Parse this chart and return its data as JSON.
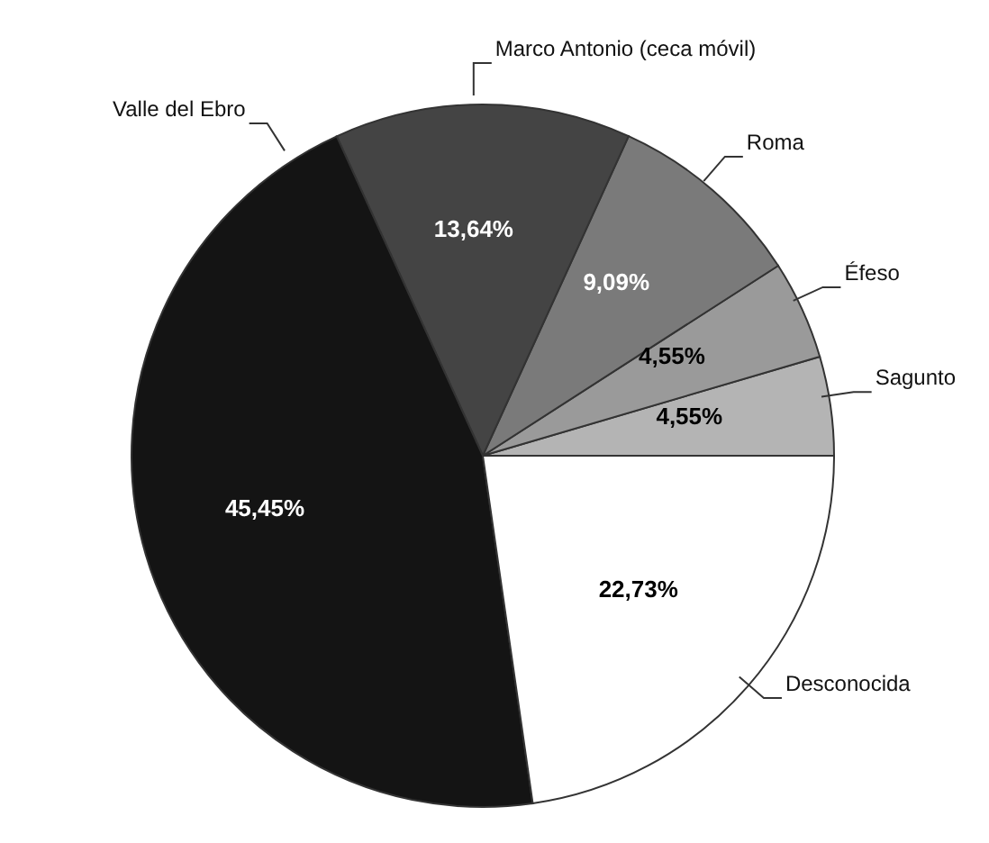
{
  "chart_data": {
    "type": "pie",
    "categories": [
      "Sagunto",
      "Éfeso",
      "Roma",
      "Marco Antonio (ceca móvil)",
      "Valle del Ebro",
      "Desconocida"
    ],
    "values": [
      4.55,
      4.55,
      9.09,
      13.64,
      45.45,
      22.73
    ],
    "value_labels": [
      "4,55%",
      "4,55%",
      "9,09%",
      "13,64%",
      "45,45%",
      "22,73%"
    ],
    "colors": [
      "#b4b4b4",
      "#9a9a9a",
      "#7a7a7a",
      "#444444",
      "#141414",
      "#ffffff"
    ]
  }
}
